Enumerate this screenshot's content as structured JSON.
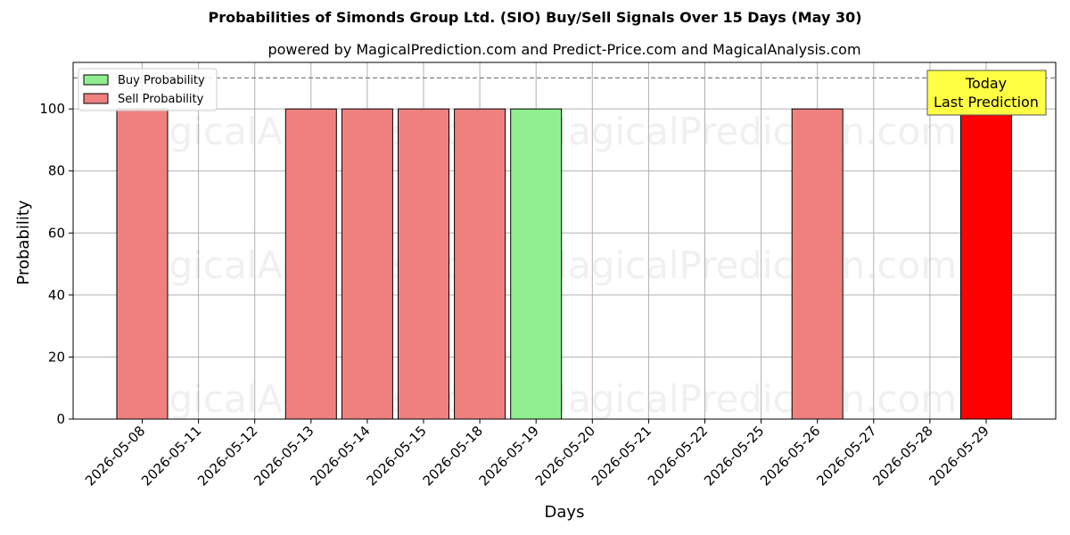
{
  "chart_data": {
    "type": "bar",
    "title": "Probabilities of Simonds Group Ltd. (SIO) Buy/Sell Signals Over 15 Days (May 30)",
    "subtitle": "powered by MagicalPrediction.com and Predict-Price.com and MagicalAnalysis.com",
    "xlabel": "Days",
    "ylabel": "Probability",
    "ylim": [
      0,
      115
    ],
    "yticks": [
      0,
      20,
      40,
      60,
      80,
      100
    ],
    "grid": true,
    "legend_position": "top-left",
    "reference_line": 110,
    "categories": [
      "2026-05-08",
      "2026-05-11",
      "2026-05-12",
      "2026-05-13",
      "2026-05-14",
      "2026-05-15",
      "2026-05-18",
      "2026-05-19",
      "2026-05-20",
      "2026-05-21",
      "2026-05-22",
      "2026-05-25",
      "2026-05-26",
      "2026-05-27",
      "2026-05-28",
      "2026-05-29"
    ],
    "series": [
      {
        "name": "Buy Probability",
        "color": "#90ee90",
        "values": [
          0,
          0,
          0,
          0,
          0,
          0,
          0,
          100,
          0,
          0,
          0,
          0,
          0,
          0,
          0,
          0
        ]
      },
      {
        "name": "Sell Probability",
        "color": "#f08080",
        "values": [
          100,
          0,
          0,
          100,
          100,
          100,
          100,
          0,
          0,
          0,
          0,
          0,
          100,
          0,
          0,
          0
        ]
      }
    ],
    "today_bar": {
      "category": "2026-05-29",
      "value": 100,
      "color": "#ff0000"
    },
    "annotation": {
      "line1": "Today",
      "line2": "Last Prediction",
      "bg_color": "#ffff44"
    },
    "watermarks": [
      "MagicalAnalysis.com",
      "MagicalPrediction.com"
    ]
  }
}
